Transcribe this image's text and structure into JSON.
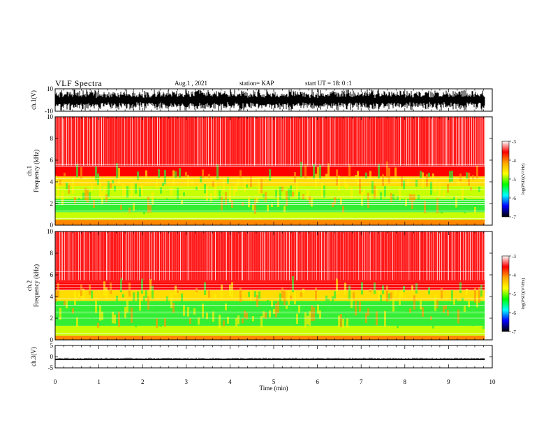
{
  "header": {
    "title": "VLF Spectra",
    "date": "Aug.1 , 2021",
    "station": "station= KAP",
    "start_time": "start UT = 18: 0 :1"
  },
  "colorbar": {
    "label": "log(PSD)(V²/Hz)",
    "ticks": [
      "-3",
      "-4",
      "-5",
      "-6",
      "-7"
    ],
    "stops": [
      "#ffffff",
      "#ff0000",
      "#ffa500",
      "#ffff00",
      "#00ff00",
      "#00ffff",
      "#0000ff",
      "#000000"
    ]
  },
  "chart_data": [
    {
      "type": "line",
      "name": "ch1-waveform",
      "ylabel": "ch.1(V)",
      "ylim": [
        -10,
        10
      ],
      "yticks": [
        "10",
        "-10"
      ],
      "xlim": [
        0,
        10
      ],
      "description_values": {
        "baseline_v": 0,
        "amplitude_v": 10
      }
    },
    {
      "type": "heatmap",
      "name": "ch1-spectrogram",
      "ylabel": "ch.1\nFrequency (kHz)",
      "ylim": [
        0,
        10
      ],
      "yticks": [
        "0",
        "2",
        "4",
        "6",
        "8",
        "10"
      ],
      "xlim": [
        0,
        9.83
      ],
      "bands": [
        {
          "f0": 0,
          "f1": 0.5,
          "level": -4.0
        },
        {
          "f0": 0.5,
          "f1": 1.2,
          "level": -4.6
        },
        {
          "f0": 1.2,
          "f1": 2.4,
          "level": -4.8
        },
        {
          "f0": 2.4,
          "f1": 3.6,
          "level": -4.7
        },
        {
          "f0": 3.6,
          "f1": 4.5,
          "level": -4.3
        },
        {
          "f0": 4.5,
          "f1": 5.5,
          "level": -3.8
        },
        {
          "f0": 5.5,
          "f1": 10,
          "level": -3.3
        }
      ],
      "lines_khz": [
        0.6,
        1.3,
        1.9,
        2.1,
        2.3,
        2.6,
        3.3,
        3.9,
        4.3,
        5.4,
        5.6
      ]
    },
    {
      "type": "heatmap",
      "name": "ch2-spectrogram",
      "ylabel": "ch.2\nFrequency (kHz)",
      "ylim": [
        0,
        10
      ],
      "yticks": [
        "0",
        "2",
        "4",
        "6",
        "8",
        "10"
      ],
      "xlim": [
        0,
        9.83
      ],
      "bands": [
        {
          "f0": 0,
          "f1": 0.4,
          "level": -4.0
        },
        {
          "f0": 0.4,
          "f1": 1.3,
          "level": -4.6
        },
        {
          "f0": 1.3,
          "f1": 2.6,
          "level": -5.0
        },
        {
          "f0": 2.6,
          "f1": 3.6,
          "level": -4.9
        },
        {
          "f0": 3.6,
          "f1": 4.6,
          "level": -4.3
        },
        {
          "f0": 4.6,
          "f1": 5.3,
          "level": -3.8
        },
        {
          "f0": 5.3,
          "f1": 10,
          "level": -3.3
        }
      ],
      "lines_khz": [
        0.6,
        2.0,
        2.5,
        3.2,
        3.8,
        4.6,
        4.8,
        5.1,
        6.3
      ]
    },
    {
      "type": "line",
      "name": "ch3-waveform",
      "ylabel": "ch.3(V)",
      "ylim": [
        -5,
        5
      ],
      "yticks": [
        "5",
        "0",
        "-5"
      ],
      "xlim": [
        0,
        9.83
      ],
      "description_values": {
        "baseline_v": -1.2,
        "amplitude_v": 0.3
      }
    }
  ],
  "xaxis": {
    "label": "Time (min)",
    "range": [
      0,
      10
    ],
    "ticks": [
      "0",
      "1",
      "2",
      "3",
      "4",
      "5",
      "6",
      "7",
      "8",
      "9",
      "10"
    ]
  }
}
